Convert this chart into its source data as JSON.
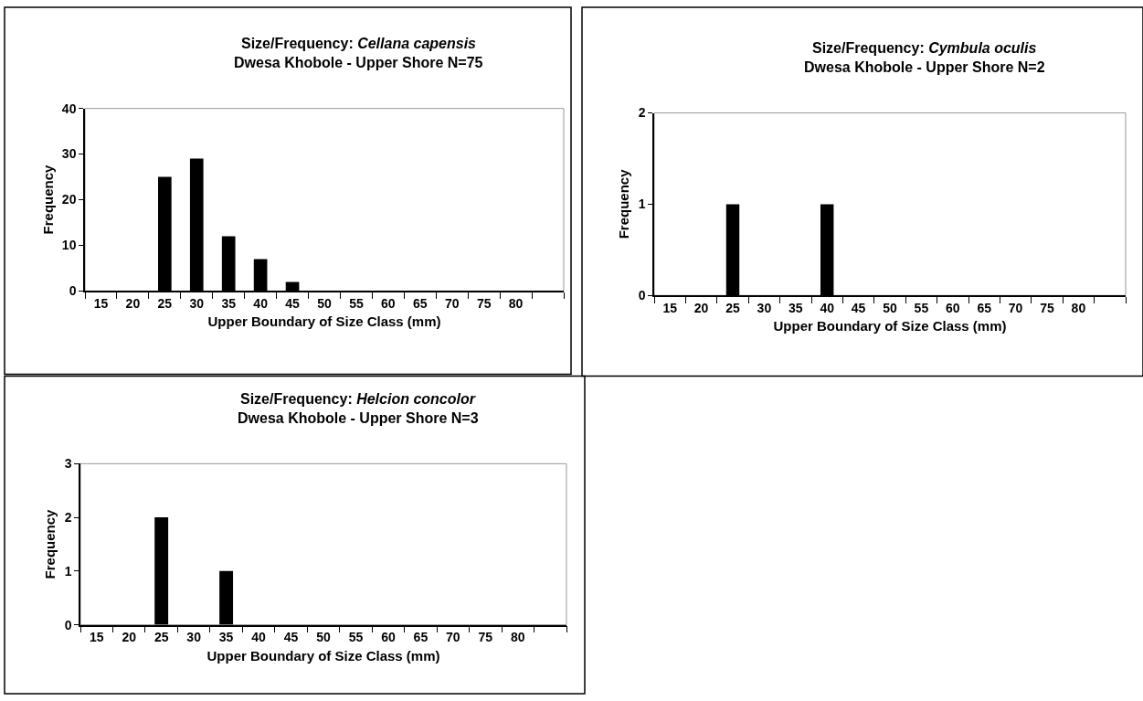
{
  "chart_data": [
    {
      "type": "bar",
      "title": "Size/Frequency: Cellana capensis",
      "subtitle": "Dwesa Khobole - Upper Shore N=75",
      "xlabel": "Upper Boundary of Size Class (mm)",
      "ylabel": "Frequency",
      "categories": [
        "15",
        "20",
        "25",
        "30",
        "35",
        "40",
        "45",
        "50",
        "55",
        "60",
        "65",
        "70",
        "75",
        "80",
        null
      ],
      "values": [
        0,
        0,
        25,
        29,
        12,
        7,
        2,
        0,
        0,
        0,
        0,
        0,
        0,
        0,
        0
      ],
      "color": "#000000",
      "ylim": [
        0,
        40
      ],
      "yticks": [
        0,
        10,
        20,
        30,
        40
      ],
      "grid": false
    },
    {
      "type": "bar",
      "title": "Size/Frequency: Cymbula oculis",
      "subtitle": "Dwesa Khobole - Upper Shore N=2",
      "xlabel": "Upper Boundary of Size Class (mm)",
      "ylabel": "Frequency",
      "categories": [
        "15",
        "20",
        "25",
        "30",
        "35",
        "40",
        "45",
        "50",
        "55",
        "60",
        "65",
        "70",
        "75",
        "80",
        null
      ],
      "values": [
        0,
        0,
        1,
        0,
        0,
        1,
        0,
        0,
        0,
        0,
        0,
        0,
        0,
        0,
        0
      ],
      "color": "#000000",
      "ylim": [
        0,
        2
      ],
      "yticks": [
        0,
        1,
        2
      ],
      "grid": false
    },
    {
      "type": "bar",
      "title": "Size/Frequency: Helcion concolor",
      "subtitle": "Dwesa Khobole - Upper Shore N=3",
      "xlabel": "Upper Boundary of Size Class (mm)",
      "ylabel": "Frequency",
      "categories": [
        "15",
        "20",
        "25",
        "30",
        "35",
        "40",
        "45",
        "50",
        "55",
        "60",
        "65",
        "70",
        "75",
        "80",
        null
      ],
      "values": [
        0,
        0,
        2,
        0,
        1,
        0,
        0,
        0,
        0,
        0,
        0,
        0,
        0,
        0,
        0
      ],
      "color": "#000000",
      "ylim": [
        0,
        3
      ],
      "yticks": [
        0,
        1,
        2,
        3
      ],
      "grid": false
    }
  ]
}
